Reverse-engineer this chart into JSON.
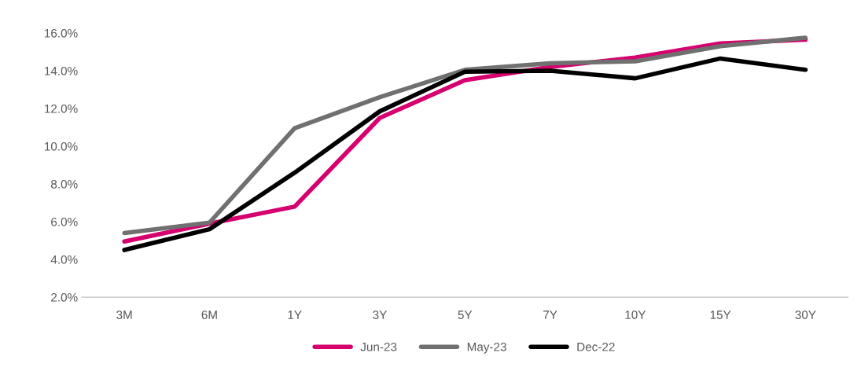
{
  "chart_data": {
    "type": "line",
    "categories": [
      "3M",
      "6M",
      "1Y",
      "3Y",
      "5Y",
      "7Y",
      "10Y",
      "15Y",
      "30Y"
    ],
    "series": [
      {
        "name": "Jun-23",
        "color": "#d6006e",
        "values": [
          4.95,
          5.9,
          6.8,
          11.5,
          13.5,
          14.2,
          14.7,
          15.45,
          15.65
        ]
      },
      {
        "name": "May-23",
        "color": "#707070",
        "values": [
          5.4,
          5.95,
          10.95,
          12.6,
          14.05,
          14.4,
          14.5,
          15.3,
          15.75
        ]
      },
      {
        "name": "Dec-22",
        "color": "#000000",
        "values": [
          4.5,
          5.6,
          8.6,
          11.85,
          13.95,
          14.0,
          13.6,
          14.65,
          14.05
        ]
      }
    ],
    "ylim": [
      2,
      16
    ],
    "yticks": [
      {
        "value": 2,
        "label": "2.0%"
      },
      {
        "value": 4,
        "label": "4.0%"
      },
      {
        "value": 6,
        "label": "6.0%"
      },
      {
        "value": 8,
        "label": "8.0%"
      },
      {
        "value": 10,
        "label": "10.0%"
      },
      {
        "value": 12,
        "label": "12.0%"
      },
      {
        "value": 14,
        "label": "14.0%"
      },
      {
        "value": 16,
        "label": "16.0%"
      }
    ],
    "grid": false,
    "legend": "bottom",
    "marker": "none",
    "line_style": "solid"
  }
}
